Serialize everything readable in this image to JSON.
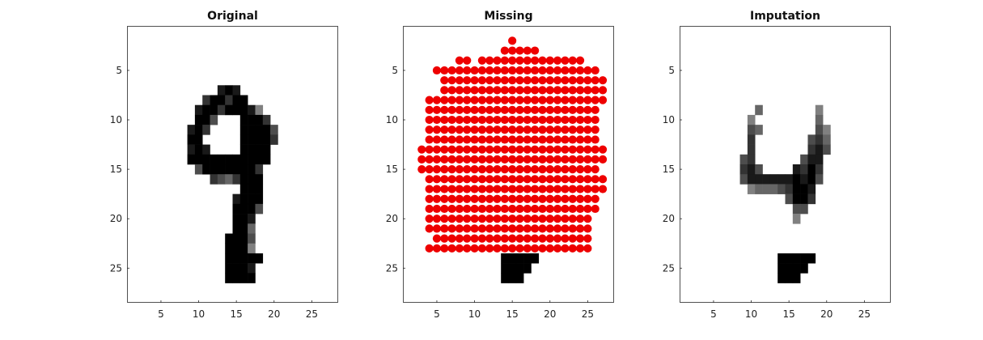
{
  "chart_data": [
    {
      "type": "heatmap",
      "title": "Original",
      "xlim": [
        0.5,
        28.5
      ],
      "ylim": [
        28.5,
        0.5
      ],
      "y_reversed": true,
      "xticks": [
        5,
        10,
        15,
        20,
        25
      ],
      "yticks": [
        5,
        10,
        15,
        20,
        25
      ],
      "colormap": "gray-inverted",
      "pixels": [
        {
          "r": 7,
          "c": 13,
          "v": 0.9
        },
        {
          "r": 7,
          "c": 14,
          "v": 1
        },
        {
          "r": 7,
          "c": 15,
          "v": 0.9
        },
        {
          "r": 8,
          "c": 11,
          "v": 0.8
        },
        {
          "r": 8,
          "c": 12,
          "v": 1
        },
        {
          "r": 8,
          "c": 13,
          "v": 1
        },
        {
          "r": 8,
          "c": 14,
          "v": 0.8
        },
        {
          "r": 8,
          "c": 15,
          "v": 1
        },
        {
          "r": 8,
          "c": 16,
          "v": 1
        },
        {
          "r": 9,
          "c": 10,
          "v": 0.9
        },
        {
          "r": 9,
          "c": 11,
          "v": 1
        },
        {
          "r": 9,
          "c": 12,
          "v": 1
        },
        {
          "r": 9,
          "c": 13,
          "v": 0.8
        },
        {
          "r": 9,
          "c": 14,
          "v": 1
        },
        {
          "r": 9,
          "c": 15,
          "v": 1
        },
        {
          "r": 9,
          "c": 16,
          "v": 1
        },
        {
          "r": 9,
          "c": 17,
          "v": 0.9
        },
        {
          "r": 9,
          "c": 18,
          "v": 0.5
        },
        {
          "r": 10,
          "c": 10,
          "v": 1
        },
        {
          "r": 10,
          "c": 11,
          "v": 1
        },
        {
          "r": 10,
          "c": 12,
          "v": 0.7
        },
        {
          "r": 10,
          "c": 16,
          "v": 1
        },
        {
          "r": 10,
          "c": 17,
          "v": 1
        },
        {
          "r": 10,
          "c": 18,
          "v": 1
        },
        {
          "r": 10,
          "c": 19,
          "v": 0.8
        },
        {
          "r": 11,
          "c": 9,
          "v": 0.9
        },
        {
          "r": 11,
          "c": 10,
          "v": 1
        },
        {
          "r": 11,
          "c": 11,
          "v": 0.8
        },
        {
          "r": 11,
          "c": 16,
          "v": 1
        },
        {
          "r": 11,
          "c": 17,
          "v": 1
        },
        {
          "r": 11,
          "c": 18,
          "v": 1
        },
        {
          "r": 11,
          "c": 19,
          "v": 1
        },
        {
          "r": 11,
          "c": 20,
          "v": 0.7
        },
        {
          "r": 12,
          "c": 9,
          "v": 1
        },
        {
          "r": 12,
          "c": 10,
          "v": 1
        },
        {
          "r": 12,
          "c": 16,
          "v": 1
        },
        {
          "r": 12,
          "c": 17,
          "v": 1
        },
        {
          "r": 12,
          "c": 18,
          "v": 1
        },
        {
          "r": 12,
          "c": 19,
          "v": 1
        },
        {
          "r": 12,
          "c": 20,
          "v": 0.8
        },
        {
          "r": 13,
          "c": 9,
          "v": 0.9
        },
        {
          "r": 13,
          "c": 10,
          "v": 1
        },
        {
          "r": 13,
          "c": 11,
          "v": 0.9
        },
        {
          "r": 13,
          "c": 16,
          "v": 1
        },
        {
          "r": 13,
          "c": 17,
          "v": 1
        },
        {
          "r": 13,
          "c": 18,
          "v": 1
        },
        {
          "r": 13,
          "c": 19,
          "v": 1
        },
        {
          "r": 14,
          "c": 9,
          "v": 1
        },
        {
          "r": 14,
          "c": 10,
          "v": 1
        },
        {
          "r": 14,
          "c": 11,
          "v": 1
        },
        {
          "r": 14,
          "c": 12,
          "v": 1
        },
        {
          "r": 14,
          "c": 13,
          "v": 1
        },
        {
          "r": 14,
          "c": 14,
          "v": 1
        },
        {
          "r": 14,
          "c": 15,
          "v": 1
        },
        {
          "r": 14,
          "c": 16,
          "v": 1
        },
        {
          "r": 14,
          "c": 17,
          "v": 1
        },
        {
          "r": 14,
          "c": 18,
          "v": 1
        },
        {
          "r": 14,
          "c": 19,
          "v": 1
        },
        {
          "r": 15,
          "c": 10,
          "v": 0.7
        },
        {
          "r": 15,
          "c": 11,
          "v": 1
        },
        {
          "r": 15,
          "c": 12,
          "v": 1
        },
        {
          "r": 15,
          "c": 13,
          "v": 1
        },
        {
          "r": 15,
          "c": 14,
          "v": 1
        },
        {
          "r": 15,
          "c": 15,
          "v": 1
        },
        {
          "r": 15,
          "c": 16,
          "v": 1
        },
        {
          "r": 15,
          "c": 17,
          "v": 1
        },
        {
          "r": 15,
          "c": 18,
          "v": 0.8
        },
        {
          "r": 16,
          "c": 12,
          "v": 0.8
        },
        {
          "r": 16,
          "c": 13,
          "v": 0.7
        },
        {
          "r": 16,
          "c": 14,
          "v": 0.6
        },
        {
          "r": 16,
          "c": 15,
          "v": 0.8
        },
        {
          "r": 16,
          "c": 16,
          "v": 1
        },
        {
          "r": 16,
          "c": 17,
          "v": 1
        },
        {
          "r": 16,
          "c": 18,
          "v": 1
        },
        {
          "r": 17,
          "c": 16,
          "v": 1
        },
        {
          "r": 17,
          "c": 17,
          "v": 1
        },
        {
          "r": 17,
          "c": 18,
          "v": 1
        },
        {
          "r": 18,
          "c": 15,
          "v": 0.9
        },
        {
          "r": 18,
          "c": 16,
          "v": 1
        },
        {
          "r": 18,
          "c": 17,
          "v": 1
        },
        {
          "r": 18,
          "c": 18,
          "v": 1
        },
        {
          "r": 19,
          "c": 15,
          "v": 1
        },
        {
          "r": 19,
          "c": 16,
          "v": 1
        },
        {
          "r": 19,
          "c": 17,
          "v": 1
        },
        {
          "r": 19,
          "c": 18,
          "v": 0.7
        },
        {
          "r": 20,
          "c": 15,
          "v": 1
        },
        {
          "r": 20,
          "c": 16,
          "v": 1
        },
        {
          "r": 20,
          "c": 17,
          "v": 0.9
        },
        {
          "r": 21,
          "c": 15,
          "v": 1
        },
        {
          "r": 21,
          "c": 16,
          "v": 1
        },
        {
          "r": 21,
          "c": 17,
          "v": 0.6
        },
        {
          "r": 22,
          "c": 14,
          "v": 1
        },
        {
          "r": 22,
          "c": 15,
          "v": 1
        },
        {
          "r": 22,
          "c": 16,
          "v": 1
        },
        {
          "r": 22,
          "c": 17,
          "v": 0.7
        },
        {
          "r": 23,
          "c": 14,
          "v": 1
        },
        {
          "r": 23,
          "c": 15,
          "v": 1
        },
        {
          "r": 23,
          "c": 16,
          "v": 1
        },
        {
          "r": 23,
          "c": 17,
          "v": 0.5
        },
        {
          "r": 24,
          "c": 14,
          "v": 1
        },
        {
          "r": 24,
          "c": 15,
          "v": 1
        },
        {
          "r": 24,
          "c": 16,
          "v": 1
        },
        {
          "r": 24,
          "c": 17,
          "v": 1
        },
        {
          "r": 24,
          "c": 18,
          "v": 1
        },
        {
          "r": 25,
          "c": 14,
          "v": 1
        },
        {
          "r": 25,
          "c": 15,
          "v": 1
        },
        {
          "r": 25,
          "c": 16,
          "v": 1
        },
        {
          "r": 25,
          "c": 17,
          "v": 0.9
        },
        {
          "r": 26,
          "c": 14,
          "v": 1
        },
        {
          "r": 26,
          "c": 15,
          "v": 1
        },
        {
          "r": 26,
          "c": 16,
          "v": 1
        },
        {
          "r": 26,
          "c": 17,
          "v": 1
        }
      ]
    },
    {
      "type": "scatter",
      "title": "Missing",
      "xlim": [
        0.5,
        28.5
      ],
      "ylim": [
        28.5,
        0.5
      ],
      "y_reversed": true,
      "xticks": [
        5,
        10,
        15,
        20,
        25
      ],
      "yticks": [
        5,
        10,
        15,
        20,
        25
      ],
      "marker_color": "#ee0000",
      "missing_rows": [
        {
          "r": 2,
          "c": [
            15
          ]
        },
        {
          "r": 3,
          "c": [
            [
              14,
              18
            ]
          ]
        },
        {
          "r": 4,
          "c": [
            8,
            9,
            [
              11,
              24
            ]
          ]
        },
        {
          "r": 5,
          "c": [
            [
              5,
              26
            ]
          ]
        },
        {
          "r": 6,
          "c": [
            [
              6,
              27
            ]
          ]
        },
        {
          "r": 7,
          "c": [
            [
              6,
              27
            ]
          ]
        },
        {
          "r": 8,
          "c": [
            [
              4,
              27
            ]
          ]
        },
        {
          "r": 9,
          "c": [
            [
              4,
              26
            ]
          ]
        },
        {
          "r": 10,
          "c": [
            [
              4,
              26
            ]
          ]
        },
        {
          "r": 11,
          "c": [
            [
              4,
              26
            ]
          ]
        },
        {
          "r": 12,
          "c": [
            [
              4,
              26
            ]
          ]
        },
        {
          "r": 13,
          "c": [
            [
              3,
              27
            ]
          ]
        },
        {
          "r": 14,
          "c": [
            [
              3,
              27
            ]
          ]
        },
        {
          "r": 15,
          "c": [
            [
              3,
              26
            ]
          ]
        },
        {
          "r": 16,
          "c": [
            [
              4,
              27
            ]
          ]
        },
        {
          "r": 17,
          "c": [
            [
              4,
              27
            ]
          ]
        },
        {
          "r": 18,
          "c": [
            [
              4,
              26
            ]
          ]
        },
        {
          "r": 19,
          "c": [
            [
              4,
              26
            ]
          ]
        },
        {
          "r": 20,
          "c": [
            [
              4,
              25
            ]
          ]
        },
        {
          "r": 21,
          "c": [
            [
              4,
              25
            ]
          ]
        },
        {
          "r": 22,
          "c": [
            [
              5,
              25
            ]
          ]
        },
        {
          "r": 23,
          "c": [
            [
              4,
              25
            ]
          ]
        }
      ],
      "pixels": [
        {
          "r": 24,
          "c": 14,
          "v": 1
        },
        {
          "r": 24,
          "c": 15,
          "v": 1
        },
        {
          "r": 24,
          "c": 16,
          "v": 1
        },
        {
          "r": 24,
          "c": 17,
          "v": 1
        },
        {
          "r": 24,
          "c": 18,
          "v": 1
        },
        {
          "r": 25,
          "c": 14,
          "v": 1
        },
        {
          "r": 25,
          "c": 15,
          "v": 1
        },
        {
          "r": 25,
          "c": 16,
          "v": 1
        },
        {
          "r": 25,
          "c": 17,
          "v": 1
        },
        {
          "r": 26,
          "c": 14,
          "v": 1
        },
        {
          "r": 26,
          "c": 15,
          "v": 1
        },
        {
          "r": 26,
          "c": 16,
          "v": 1
        }
      ]
    },
    {
      "type": "heatmap",
      "title": "Imputation",
      "xlim": [
        0.5,
        28.5
      ],
      "ylim": [
        28.5,
        0.5
      ],
      "y_reversed": true,
      "xticks": [
        5,
        10,
        15,
        20,
        25
      ],
      "yticks": [
        5,
        10,
        15,
        20,
        25
      ],
      "colormap": "gray-inverted",
      "pixels": [
        {
          "r": 9,
          "c": 11,
          "v": 0.6
        },
        {
          "r": 9,
          "c": 19,
          "v": 0.5
        },
        {
          "r": 10,
          "c": 10,
          "v": 0.5
        },
        {
          "r": 10,
          "c": 19,
          "v": 0.6
        },
        {
          "r": 11,
          "c": 10,
          "v": 0.7
        },
        {
          "r": 11,
          "c": 11,
          "v": 0.6
        },
        {
          "r": 11,
          "c": 19,
          "v": 0.7
        },
        {
          "r": 11,
          "c": 20,
          "v": 0.5
        },
        {
          "r": 12,
          "c": 10,
          "v": 0.8
        },
        {
          "r": 12,
          "c": 18,
          "v": 0.7
        },
        {
          "r": 12,
          "c": 19,
          "v": 0.8
        },
        {
          "r": 12,
          "c": 20,
          "v": 0.6
        },
        {
          "r": 13,
          "c": 10,
          "v": 0.8
        },
        {
          "r": 13,
          "c": 18,
          "v": 0.8
        },
        {
          "r": 13,
          "c": 19,
          "v": 0.9
        },
        {
          "r": 13,
          "c": 20,
          "v": 0.7
        },
        {
          "r": 14,
          "c": 9,
          "v": 0.7
        },
        {
          "r": 14,
          "c": 10,
          "v": 0.8
        },
        {
          "r": 14,
          "c": 17,
          "v": 0.7
        },
        {
          "r": 14,
          "c": 18,
          "v": 0.9
        },
        {
          "r": 14,
          "c": 19,
          "v": 0.9
        },
        {
          "r": 15,
          "c": 9,
          "v": 0.8
        },
        {
          "r": 15,
          "c": 10,
          "v": 0.9
        },
        {
          "r": 15,
          "c": 11,
          "v": 0.7
        },
        {
          "r": 15,
          "c": 16,
          "v": 0.9
        },
        {
          "r": 15,
          "c": 17,
          "v": 0.8
        },
        {
          "r": 15,
          "c": 18,
          "v": 1
        },
        {
          "r": 15,
          "c": 19,
          "v": 0.8
        },
        {
          "r": 16,
          "c": 9,
          "v": 0.7
        },
        {
          "r": 16,
          "c": 10,
          "v": 0.9
        },
        {
          "r": 16,
          "c": 11,
          "v": 0.9
        },
        {
          "r": 16,
          "c": 12,
          "v": 0.9
        },
        {
          "r": 16,
          "c": 13,
          "v": 0.9
        },
        {
          "r": 16,
          "c": 14,
          "v": 0.9
        },
        {
          "r": 16,
          "c": 15,
          "v": 0.9
        },
        {
          "r": 16,
          "c": 16,
          "v": 1
        },
        {
          "r": 16,
          "c": 17,
          "v": 0.9
        },
        {
          "r": 16,
          "c": 18,
          "v": 1
        },
        {
          "r": 16,
          "c": 19,
          "v": 0.7
        },
        {
          "r": 17,
          "c": 10,
          "v": 0.5
        },
        {
          "r": 17,
          "c": 11,
          "v": 0.6
        },
        {
          "r": 17,
          "c": 12,
          "v": 0.6
        },
        {
          "r": 17,
          "c": 13,
          "v": 0.6
        },
        {
          "r": 17,
          "c": 14,
          "v": 0.7
        },
        {
          "r": 17,
          "c": 15,
          "v": 0.8
        },
        {
          "r": 17,
          "c": 16,
          "v": 1
        },
        {
          "r": 17,
          "c": 17,
          "v": 1
        },
        {
          "r": 17,
          "c": 18,
          "v": 0.9
        },
        {
          "r": 18,
          "c": 15,
          "v": 0.7
        },
        {
          "r": 18,
          "c": 16,
          "v": 1
        },
        {
          "r": 18,
          "c": 17,
          "v": 1
        },
        {
          "r": 18,
          "c": 18,
          "v": 0.8
        },
        {
          "r": 19,
          "c": 16,
          "v": 0.7
        },
        {
          "r": 19,
          "c": 17,
          "v": 0.7
        },
        {
          "r": 20,
          "c": 16,
          "v": 0.5
        },
        {
          "r": 24,
          "c": 14,
          "v": 1
        },
        {
          "r": 24,
          "c": 15,
          "v": 1
        },
        {
          "r": 24,
          "c": 16,
          "v": 1
        },
        {
          "r": 24,
          "c": 17,
          "v": 1
        },
        {
          "r": 24,
          "c": 18,
          "v": 1
        },
        {
          "r": 25,
          "c": 14,
          "v": 1
        },
        {
          "r": 25,
          "c": 15,
          "v": 1
        },
        {
          "r": 25,
          "c": 16,
          "v": 1
        },
        {
          "r": 25,
          "c": 17,
          "v": 1
        },
        {
          "r": 26,
          "c": 14,
          "v": 1
        },
        {
          "r": 26,
          "c": 15,
          "v": 1
        },
        {
          "r": 26,
          "c": 16,
          "v": 1
        }
      ]
    }
  ]
}
